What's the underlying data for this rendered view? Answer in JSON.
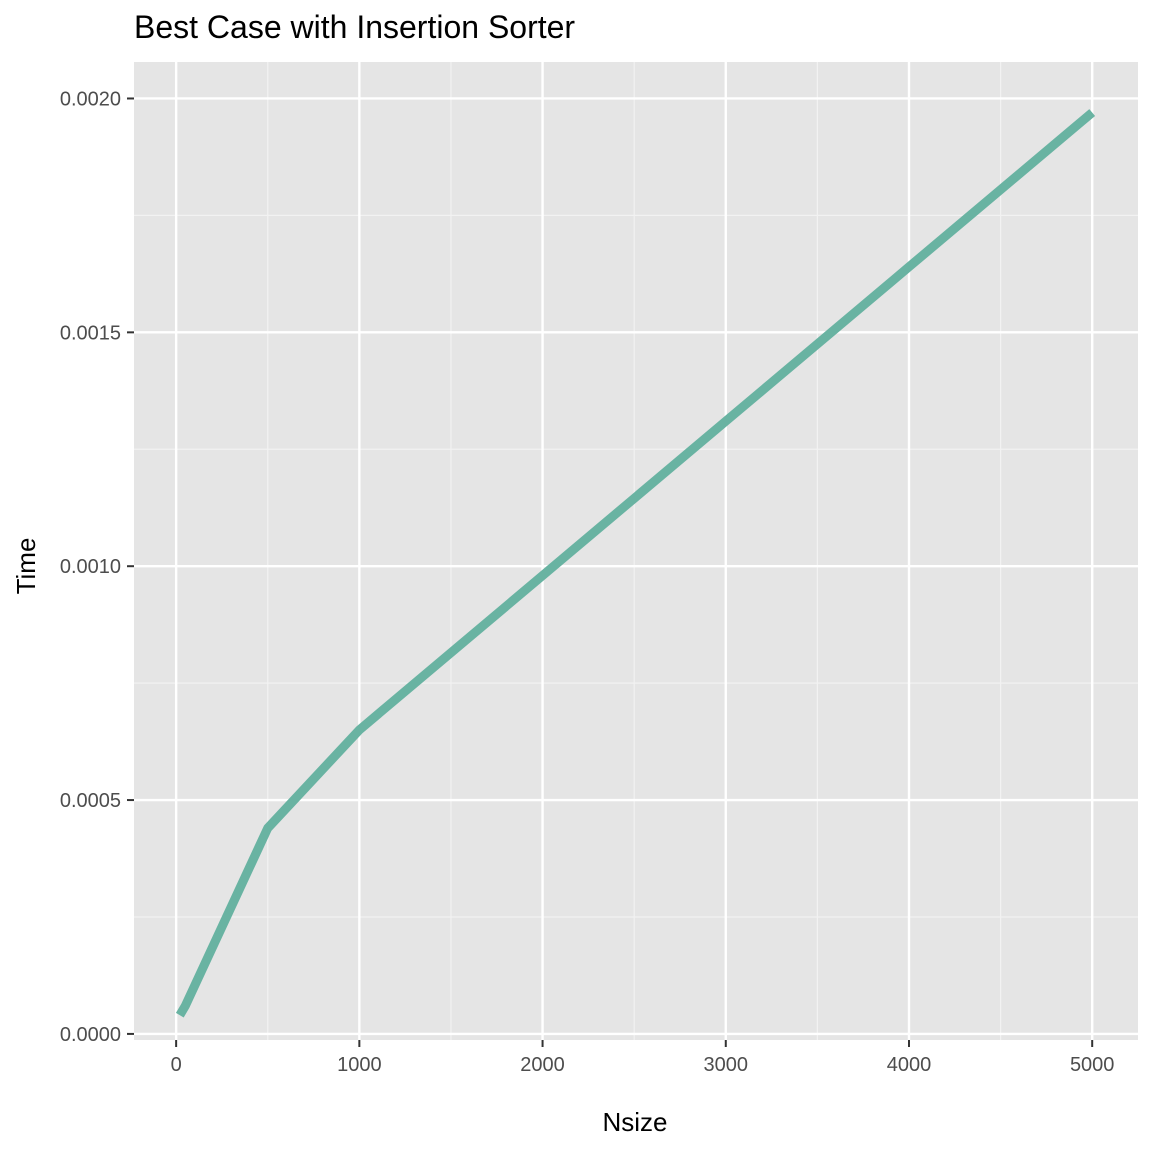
{
  "chart_data": {
    "type": "line",
    "title": "Best Case with Insertion Sorter",
    "xlabel": "Nsize",
    "ylabel": "Time",
    "xlim": [
      -230,
      5250
    ],
    "ylim": [
      -1.3e-05,
      0.002078
    ],
    "x_ticks": [
      0,
      1000,
      2000,
      3000,
      4000,
      5000
    ],
    "x_tick_labels": [
      "0",
      "1000",
      "2000",
      "3000",
      "4000",
      "5000"
    ],
    "x_minor_ticks": [
      500,
      1500,
      2500,
      3500,
      4500
    ],
    "y_ticks": [
      0,
      0.0005,
      0.001,
      0.0015,
      0.002
    ],
    "y_tick_labels": [
      "0.0000",
      "0.0005",
      "0.0010",
      "0.0015",
      "0.0020"
    ],
    "y_minor_ticks": [
      0.00025,
      0.00075,
      0.00125,
      0.00175
    ],
    "grid": true,
    "legend": "none",
    "series": [
      {
        "color": "#69b3a2",
        "x": [
          20,
          50,
          500,
          1000,
          2000,
          3000,
          4000,
          5000
        ],
        "y": [
          4e-05,
          6e-05,
          0.00044,
          0.00065,
          0.00098,
          0.00131,
          0.00164,
          0.00197
        ]
      }
    ]
  },
  "colors": {
    "panel_background": "#e5e5e5",
    "grid_major": "#ffffff",
    "grid_minor": "#f2f2f2",
    "tick_text": "#4d4d4d",
    "tick_mark": "#333333"
  }
}
